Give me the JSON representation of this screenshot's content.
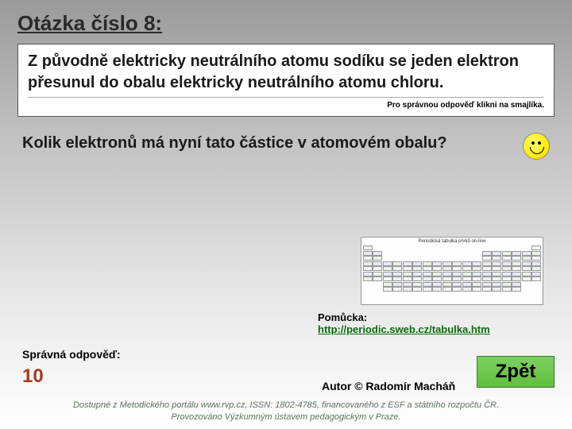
{
  "title": "Otázka číslo 8:",
  "question": "Z původně elektricky neutrálního atomu sodíku se jeden elektron přesunul do obalu elektricky neutrálního atomu chloru.",
  "click_hint": "Pro správnou odpověď klikni na smajlíka.",
  "subquestion": "Kolik elektronů má nyní tato částice v atomovém obalu?",
  "ptable_title": "Periodická tabulka prvků on-line",
  "hint_label": "Pomůcka:",
  "hint_link": "http://periodic.sweb.cz/tabulka.htm",
  "answer_label": "Správná odpověď:",
  "answer_value": "10",
  "author": "Autor © Radomír Macháň",
  "back": "Zpět",
  "footer1": "Dostupné z Metodického portálu www.rvp.cz, ISSN: 1802-4785, financovaného z ESF a státního rozpočtu ČR.",
  "footer2": "Provozováno Výzkumným ústavem pedagogickým v Praze.",
  "colors": {
    "title": "#2a2a2a",
    "answer": "#a83820",
    "link": "#0a6b0a",
    "back_bg": "#5fbf3f",
    "footer": "#5a735a"
  }
}
